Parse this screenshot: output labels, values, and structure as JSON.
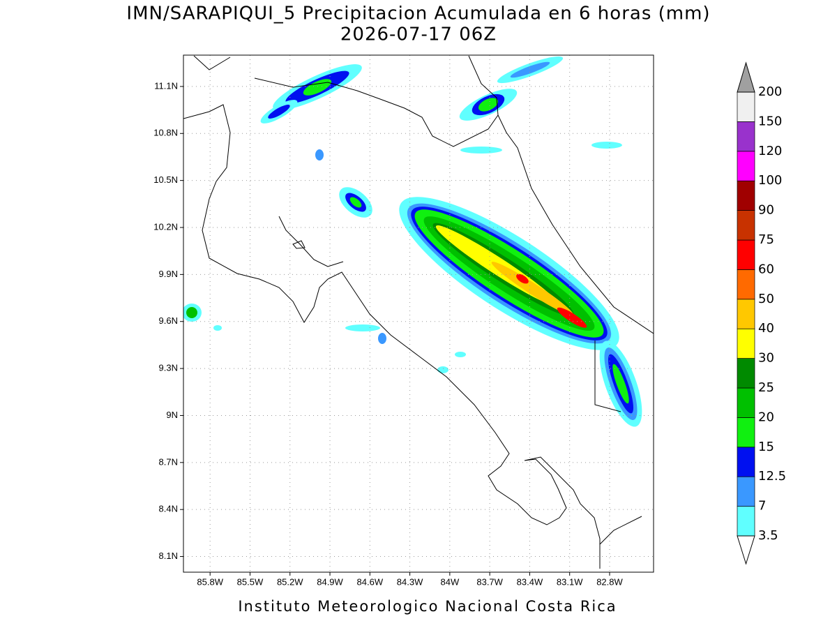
{
  "header": {
    "title": "IMN/SARAPIQUI_5 Precipitacion Acumulada en 6 horas (mm)",
    "subtitle": "2026-07-17 06Z"
  },
  "map": {
    "lat_ticks": [
      {
        "value": 11.1,
        "label": "11.1N"
      },
      {
        "value": 10.8,
        "label": "10.8N"
      },
      {
        "value": 10.5,
        "label": "10.5N"
      },
      {
        "value": 10.2,
        "label": "10.2N"
      },
      {
        "value": 9.9,
        "label": "9.9N"
      },
      {
        "value": 9.6,
        "label": "9.6N"
      },
      {
        "value": 9.3,
        "label": "9.3N"
      },
      {
        "value": 9,
        "label": "9N"
      },
      {
        "value": 8.7,
        "label": "8.7N"
      },
      {
        "value": 8.4,
        "label": "8.4N"
      },
      {
        "value": 8.1,
        "label": "8.1N"
      }
    ],
    "lon_ticks": [
      {
        "value": -85.8,
        "label": "85.8W"
      },
      {
        "value": -85.5,
        "label": "85.5W"
      },
      {
        "value": -85.2,
        "label": "85.2W"
      },
      {
        "value": -84.9,
        "label": "84.9W"
      },
      {
        "value": -84.6,
        "label": "84.6W"
      },
      {
        "value": -84.3,
        "label": "84.3W"
      },
      {
        "value": -84,
        "label": "84W"
      },
      {
        "value": -83.7,
        "label": "83.7W"
      },
      {
        "value": -83.4,
        "label": "83.4W"
      },
      {
        "value": -83.1,
        "label": "83.1W"
      },
      {
        "value": -82.8,
        "label": "82.8W"
      }
    ],
    "lat_range": [
      8.0,
      11.3
    ],
    "lon_range": [
      -86.0,
      -82.47
    ]
  },
  "colorbar": {
    "levels": [
      3.5,
      7,
      12.5,
      15,
      20,
      25,
      30,
      40,
      50,
      60,
      75,
      90,
      100,
      120,
      150,
      200
    ],
    "colors": [
      "#60ffff",
      "#3a98ff",
      "#0010f0",
      "#10f010",
      "#00c000",
      "#008a00",
      "#ffff00",
      "#ffc800",
      "#ff6a00",
      "#ff0000",
      "#c83200",
      "#a00000",
      "#ff00ff",
      "#9932cc",
      "#f0f0f0"
    ],
    "under_color": "#ffffff",
    "over_color": "#a0a0a0"
  },
  "footer": "Instituto Meteorologico Nacional Costa Rica"
}
